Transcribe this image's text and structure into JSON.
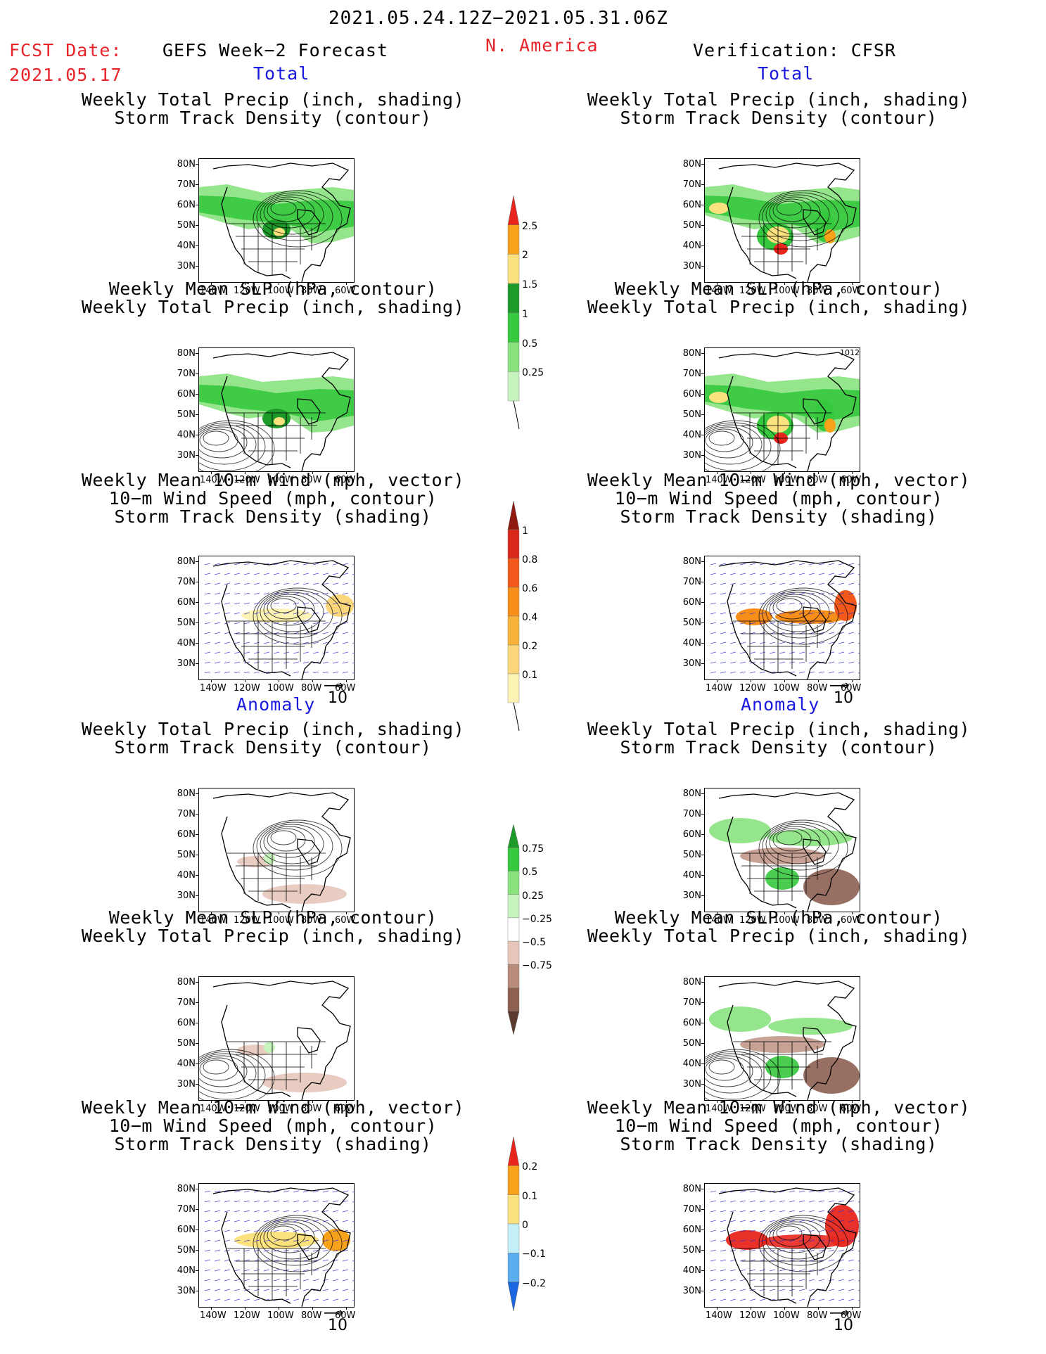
{
  "header": {
    "period": "2021.05.24.12Z−2021.05.31.06Z",
    "fcst_label": "FCST Date:",
    "fcst_date": "2021.05.17",
    "left_title": "GEFS Week−2 Forecast",
    "region": "N. America",
    "right_title": "Verification: CFSR"
  },
  "sections": {
    "total": "Total",
    "anomaly": "Anomaly"
  },
  "captions": {
    "precip_storm": [
      "Weekly Total Precip (inch, shading)",
      "Storm Track Density (contour)"
    ],
    "slp_precip": [
      "Weekly Mean SLP (hPa, contour)",
      "Weekly Total Precip (inch, shading)"
    ],
    "wind_storm": [
      "Weekly Mean 10−m Wind (mph, vector)",
      "10−m Wind Speed (mph, contour)",
      "Storm Track Density (shading)"
    ]
  },
  "axes": {
    "lat": [
      "80N",
      "70N",
      "60N",
      "50N",
      "40N",
      "30N"
    ],
    "lon": [
      "140W",
      "120W",
      "100W",
      "80W",
      "60W"
    ]
  },
  "map_annotation": "1012",
  "vector_ref": "10",
  "colorbars": {
    "precip_total": {
      "labels": [
        "2.5",
        "2",
        "1.5",
        "1",
        "0.5",
        "0.25"
      ],
      "colors": [
        "#e8261e",
        "#f7a21b",
        "#fbe27e",
        "#1e9a2a",
        "#36c83e",
        "#88e27e",
        "#c6f4bc"
      ]
    },
    "storm_total": {
      "labels": [
        "1",
        "0.8",
        "0.6",
        "0.4",
        "0.2",
        "0.1"
      ],
      "colors": [
        "#8e1a10",
        "#d7281b",
        "#f1581a",
        "#f78e1a",
        "#f8b43a",
        "#fbd67a",
        "#fdf3b4"
      ]
    },
    "precip_anom": {
      "labels": [
        "0.75",
        "0.5",
        "0.25",
        "−0.25",
        "−0.5",
        "−0.75"
      ],
      "colors": [
        "#1e9a2a",
        "#36c83e",
        "#88e27e",
        "#c6f4bc",
        "#ffffff",
        "#e6c6bb",
        "#b98b7b",
        "#8d6052",
        "#5c3a2e"
      ]
    },
    "storm_anom": {
      "labels": [
        "0.2",
        "0.1",
        "0",
        "−0.1",
        "−0.2"
      ],
      "colors": [
        "#e8261e",
        "#f7a21b",
        "#fbe27e",
        "#c4f0f8",
        "#5aaef0",
        "#1a66e0"
      ]
    }
  }
}
